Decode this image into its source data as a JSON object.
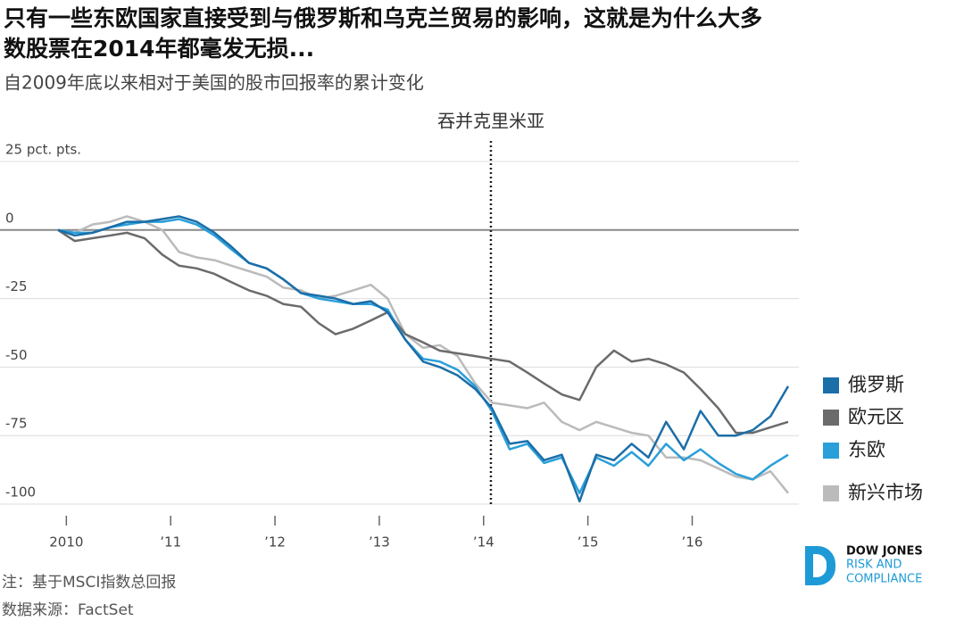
{
  "chart_data": {
    "type": "line",
    "title_lines": [
      "只有一些东欧国家直接受到与俄罗斯和乌克兰贸易的影响，这就是为什么大多",
      "数股票在2014年都毫发无损..."
    ],
    "subtitle": "自2009年底以来相对于美国的股市回报率的累计变化",
    "annotation": {
      "text": "吞并克里米亚",
      "x": 2014.07
    },
    "x": [
      2009.92,
      2010.08,
      2010.25,
      2010.42,
      2010.58,
      2010.75,
      2010.92,
      2011.08,
      2011.25,
      2011.42,
      2011.58,
      2011.75,
      2011.92,
      2012.08,
      2012.25,
      2012.42,
      2012.58,
      2012.75,
      2012.92,
      2013.08,
      2013.25,
      2013.42,
      2013.58,
      2013.75,
      2013.92,
      2014.08,
      2014.25,
      2014.42,
      2014.58,
      2014.75,
      2014.92,
      2015.08,
      2015.25,
      2015.42,
      2015.58,
      2015.75,
      2015.92,
      2016.08,
      2016.25,
      2016.42,
      2016.58,
      2016.75,
      2016.92
    ],
    "series": [
      {
        "name": "俄罗斯",
        "color": "#1b6ea8",
        "values": [
          0,
          -2,
          -1,
          1,
          3,
          3,
          4,
          5,
          3,
          -1,
          -6,
          -12,
          -14,
          -18,
          -23,
          -24,
          -25,
          -27,
          -26,
          -30,
          -40,
          -48,
          -50,
          -53,
          -58,
          -65,
          -78,
          -77,
          -84,
          -82,
          -99,
          -82,
          -84,
          -78,
          -83,
          -70,
          -80,
          -66,
          -75,
          -75,
          -73,
          -68,
          -57
        ]
      },
      {
        "name": "欧元区",
        "color": "#6b6b6b",
        "values": [
          0,
          -4,
          -3,
          -2,
          -1,
          -3,
          -9,
          -13,
          -14,
          -16,
          -19,
          -22,
          -24,
          -27,
          -28,
          -34,
          -38,
          -36,
          -33,
          -30,
          -38,
          -41,
          -44,
          -45,
          -46,
          -47,
          -48,
          -52,
          -56,
          -60,
          -62,
          -50,
          -44,
          -48,
          -47,
          -49,
          -52,
          -58,
          -65,
          -74,
          -74,
          -72,
          -70
        ]
      },
      {
        "name": "东欧",
        "color": "#2a9fd9",
        "values": [
          0,
          -1,
          -1,
          1,
          2,
          3,
          3,
          4,
          2,
          -2,
          -7,
          -12,
          -14,
          -18,
          -23,
          -25,
          -26,
          -27,
          -27,
          -29,
          -40,
          -47,
          -48,
          -51,
          -57,
          -66,
          -80,
          -78,
          -85,
          -83,
          -96,
          -83,
          -86,
          -81,
          -86,
          -78,
          -84,
          -80,
          -85,
          -89,
          -91,
          -86,
          -82
        ]
      },
      {
        "name": "新兴市场",
        "color": "#bbbbbb",
        "values": [
          0,
          -1,
          2,
          3,
          5,
          3,
          0,
          -8,
          -10,
          -11,
          -13,
          -15,
          -17,
          -21,
          -22,
          -25,
          -24,
          -22,
          -20,
          -25,
          -38,
          -43,
          -42,
          -46,
          -56,
          -63,
          -64,
          -65,
          -63,
          -70,
          -73,
          -70,
          -72,
          -74,
          -75,
          -83,
          -83,
          -84,
          -87,
          -90,
          -91,
          -88,
          -96
        ]
      }
    ],
    "xlim": [
      2009.92,
      2016.92
    ],
    "xticks": [
      2010,
      {
        "value": 2011,
        "label": "’11"
      },
      {
        "value": 2012,
        "label": "’12"
      },
      {
        "value": 2013,
        "label": "’13"
      },
      {
        "value": 2014,
        "label": "’14"
      },
      {
        "value": 2015,
        "label": "’15"
      },
      {
        "value": 2016,
        "label": "’16"
      }
    ],
    "ylim": [
      -100,
      25
    ],
    "yticks": [
      {
        "value": 25,
        "label": "25 pct. pts."
      },
      0,
      -25,
      -50,
      -75,
      -100
    ],
    "grid": true,
    "legend": "right",
    "notes": [
      "注：基于MSCI指数总回报",
      "数据来源：FactSet"
    ],
    "logo_lines": [
      "DOW JONES",
      "RISK AND",
      "COMPLIANCE"
    ]
  }
}
